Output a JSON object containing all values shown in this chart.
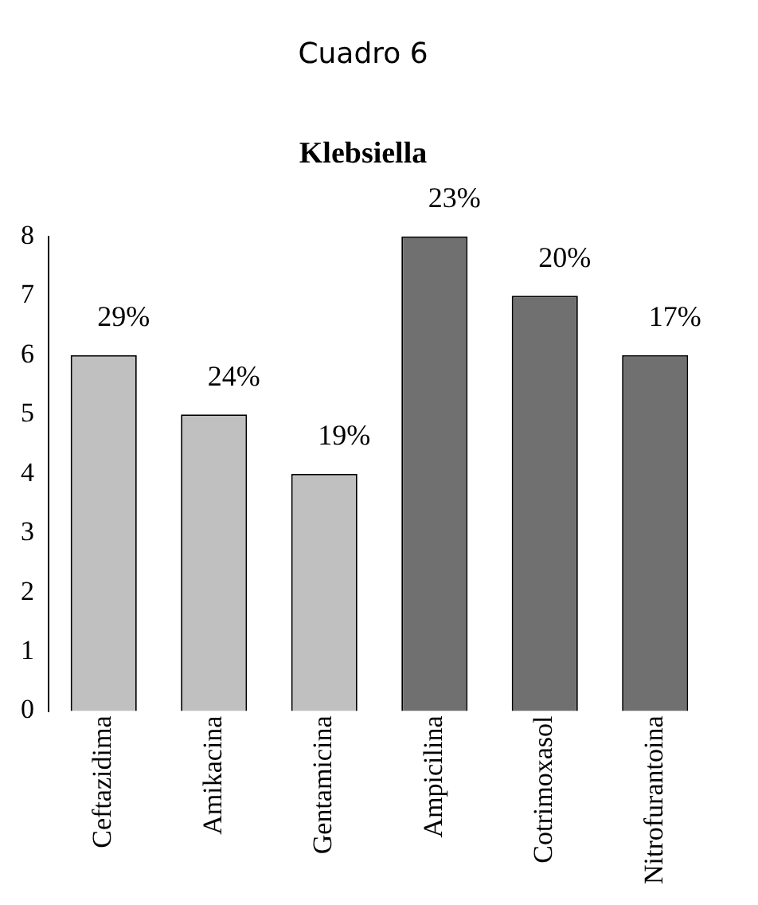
{
  "chart_data": {
    "type": "bar",
    "title": "Cuadro 6",
    "subtitle": "Klebsiella",
    "categories": [
      "Ceftazidima",
      "Amikacina",
      "Gentamicina",
      "Ampicilina",
      "Cotrimoxasol",
      "Nitrofurantoina"
    ],
    "values": [
      6,
      5,
      4,
      8,
      7,
      6
    ],
    "colors": [
      "#c0c0c0",
      "#c0c0c0",
      "#c0c0c0",
      "#707070",
      "#707070",
      "#707070"
    ],
    "annotations": [
      {
        "text": "29%",
        "x": "Ceftazidima",
        "y": 6
      },
      {
        "text": "24%",
        "x": "Amikacina",
        "y": 5
      },
      {
        "text": "19%",
        "x": "Gentamicina",
        "y": 4
      },
      {
        "text": "23%",
        "x": "Ampicilina",
        "y": 8
      },
      {
        "text": "20%",
        "x": "Cotrimoxasol",
        "y": 7
      },
      {
        "text": "17%",
        "x": "Nitrofurantoina",
        "y": 6
      }
    ],
    "ylim": [
      0,
      8
    ],
    "yticks": [
      0,
      1,
      2,
      3,
      4,
      5,
      6,
      7,
      8
    ],
    "grid": false,
    "legend": false
  }
}
